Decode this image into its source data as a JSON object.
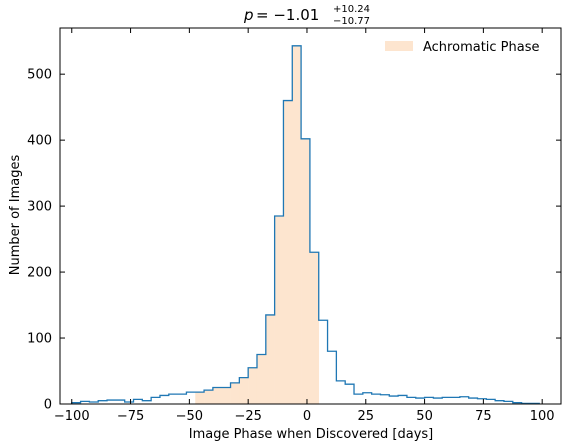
{
  "chart_data": {
    "type": "histogram",
    "title": {
      "p_label": "p",
      "equals": "= −1.01",
      "upper": "+10.24",
      "lower": "−10.77"
    },
    "xlabel": "Image Phase when Discovered [days]",
    "ylabel": "Number of Images",
    "xlim": [
      -105,
      108
    ],
    "ylim": [
      0,
      570
    ],
    "xticks": [
      -100,
      -75,
      -50,
      -25,
      0,
      25,
      50,
      75,
      100
    ],
    "xtick_labels": [
      "−100",
      "−75",
      "−50",
      "−25",
      "0",
      "25",
      "50",
      "75",
      "100"
    ],
    "yticks": [
      0,
      100,
      200,
      300,
      400,
      500
    ],
    "ytick_labels": [
      "0",
      "100",
      "200",
      "300",
      "400",
      "500"
    ],
    "bin_edges": [
      -100,
      -96.25,
      -92.5,
      -88.75,
      -85,
      -81.25,
      -77.5,
      -73.75,
      -70,
      -66.25,
      -62.5,
      -58.75,
      -55,
      -51.25,
      -47.5,
      -43.75,
      -40,
      -36.25,
      -32.5,
      -28.75,
      -25,
      -21.25,
      -17.5,
      -13.75,
      -10,
      -6.25,
      -2.5,
      1.25,
      5,
      8.75,
      12.5,
      16.25,
      20,
      23.75,
      27.5,
      31.25,
      35,
      38.75,
      42.5,
      46.25,
      50,
      53.75,
      57.5,
      61.25,
      65,
      68.75,
      72.5,
      76.25,
      80,
      83.75,
      87.5,
      91.25,
      95,
      98.75
    ],
    "counts": [
      2,
      4,
      3,
      5,
      6,
      6,
      3,
      7,
      5,
      10,
      13,
      15,
      15,
      18,
      18,
      21,
      25,
      25,
      32,
      40,
      55,
      75,
      135,
      285,
      460,
      543,
      402,
      230,
      127,
      80,
      35,
      30,
      15,
      17,
      15,
      14,
      12,
      13,
      10,
      9,
      10,
      9,
      10,
      10,
      11,
      9,
      8,
      7,
      5,
      4,
      2,
      1,
      1
    ],
    "achromatic_range": [
      -50,
      5
    ],
    "legend": {
      "label": "Achromatic Phase",
      "position": "top-right"
    },
    "colors": {
      "step_line": "#1f77b4",
      "achromatic_fill": "#fde5cf"
    }
  }
}
